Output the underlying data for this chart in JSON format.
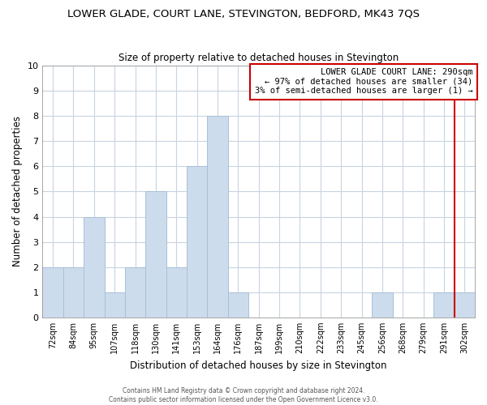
{
  "title": "LOWER GLADE, COURT LANE, STEVINGTON, BEDFORD, MK43 7QS",
  "subtitle": "Size of property relative to detached houses in Stevington",
  "xlabel": "Distribution of detached houses by size in Stevington",
  "ylabel": "Number of detached properties",
  "bar_color": "#cddcec",
  "bar_edge_color": "#a8c0d8",
  "categories": [
    "72sqm",
    "84sqm",
    "95sqm",
    "107sqm",
    "118sqm",
    "130sqm",
    "141sqm",
    "153sqm",
    "164sqm",
    "176sqm",
    "187sqm",
    "199sqm",
    "210sqm",
    "222sqm",
    "233sqm",
    "245sqm",
    "256sqm",
    "268sqm",
    "279sqm",
    "291sqm",
    "302sqm"
  ],
  "values": [
    2,
    2,
    4,
    1,
    2,
    5,
    2,
    6,
    8,
    1,
    0,
    0,
    0,
    0,
    0,
    0,
    1,
    0,
    0,
    1,
    1
  ],
  "ylim": [
    0,
    10
  ],
  "yticks": [
    0,
    1,
    2,
    3,
    4,
    5,
    6,
    7,
    8,
    9,
    10
  ],
  "ref_line_color": "#cc0000",
  "annotation_title": "LOWER GLADE COURT LANE: 290sqm",
  "annotation_line1": "← 97% of detached houses are smaller (34)",
  "annotation_line2": "3% of semi-detached houses are larger (1) →",
  "annotation_box_color": "#ffffff",
  "annotation_box_edge": "#cc0000",
  "footer1": "Contains HM Land Registry data © Crown copyright and database right 2024.",
  "footer2": "Contains public sector information licensed under the Open Government Licence v3.0.",
  "background_color": "#ffffff",
  "grid_color": "#c8d4e0"
}
